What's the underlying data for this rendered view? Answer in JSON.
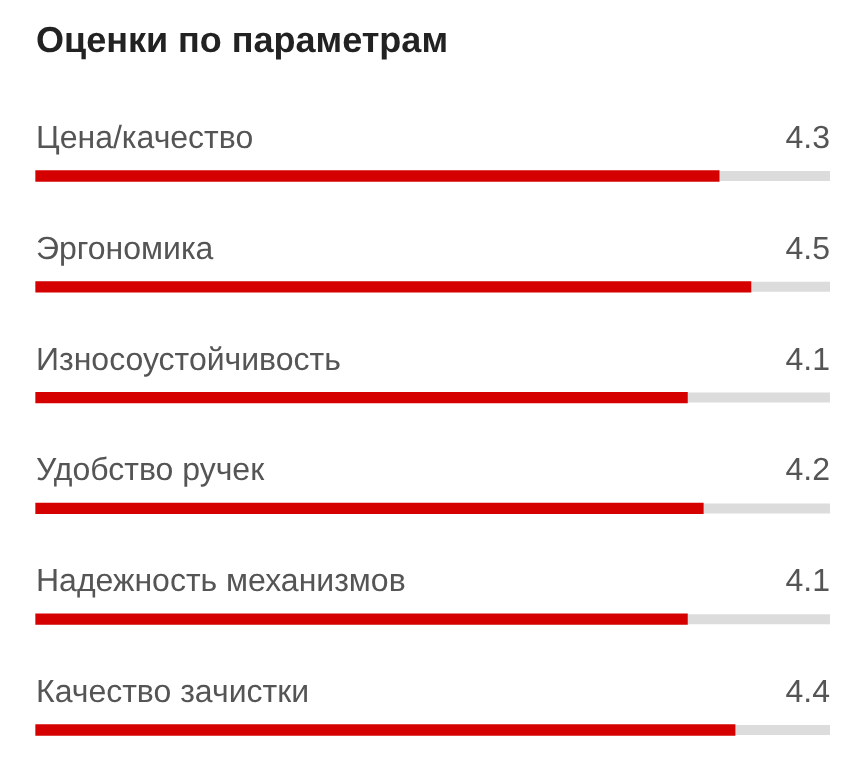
{
  "chart_data": {
    "type": "bar",
    "orientation": "horizontal",
    "title": "Оценки по параметрам",
    "categories": [
      "Цена/качество",
      "Эргономика",
      "Износоустойчивость",
      "Удобство ручек",
      "Надежность механизмов",
      "Качество зачистки"
    ],
    "values": [
      4.3,
      4.5,
      4.1,
      4.2,
      4.1,
      4.4
    ],
    "color": "#d50000",
    "xlim": [
      0,
      5
    ],
    "data_labels": true,
    "tick_labels": "y"
  }
}
